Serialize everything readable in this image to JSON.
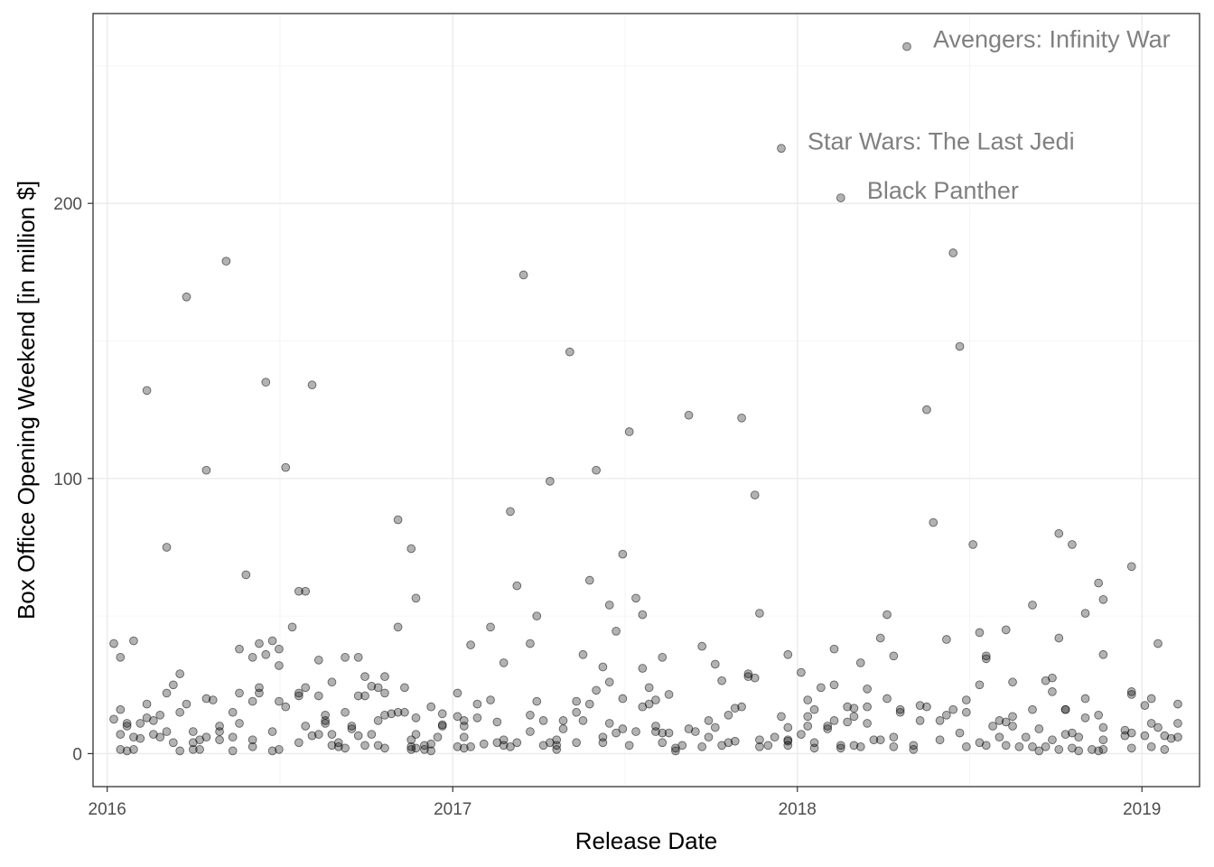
{
  "chart_data": {
    "type": "scatter",
    "title": "",
    "xlabel": "Release Date",
    "ylabel": "Box Office Opening Weekend [in million $]",
    "xlim": [
      "2015-12-17",
      "2019-03-03"
    ],
    "ylim": [
      -12,
      269
    ],
    "x_ticks": [
      "2016-01-01",
      "2017-01-01",
      "2018-01-01",
      "2019-01-01"
    ],
    "x_tick_labels": [
      "2016",
      "2017",
      "2018",
      "2019"
    ],
    "y_ticks": [
      0,
      100,
      200
    ],
    "y_tick_labels": [
      "0",
      "100",
      "200"
    ],
    "grid": true,
    "legend": "none",
    "point_color": "#000000",
    "point_alpha": 0.3,
    "annotations": [
      {
        "text": "Avengers: Infinity War",
        "x": "2018-04-27",
        "y": 257
      },
      {
        "text": "Star Wars: The Last Jedi",
        "x": "2017-12-15",
        "y": 220
      },
      {
        "text": "Black Panther",
        "x": "2018-02-16",
        "y": 202
      }
    ],
    "points": [
      [
        "2016-01-08",
        40
      ],
      [
        "2016-01-08",
        12.5
      ],
      [
        "2016-01-15",
        35
      ],
      [
        "2016-01-15",
        16
      ],
      [
        "2016-01-15",
        7
      ],
      [
        "2016-01-15",
        1.5
      ],
      [
        "2016-01-22",
        11
      ],
      [
        "2016-01-22",
        10
      ],
      [
        "2016-01-22",
        1
      ],
      [
        "2016-01-29",
        41
      ],
      [
        "2016-01-29",
        1.5
      ],
      [
        "2016-01-29",
        6
      ],
      [
        "2016-02-05",
        11
      ],
      [
        "2016-02-05",
        5.5
      ],
      [
        "2016-02-12",
        132
      ],
      [
        "2016-02-12",
        18
      ],
      [
        "2016-02-12",
        13
      ],
      [
        "2016-02-19",
        12
      ],
      [
        "2016-02-19",
        7
      ],
      [
        "2016-02-26",
        14
      ],
      [
        "2016-02-26",
        6
      ],
      [
        "2016-03-04",
        75
      ],
      [
        "2016-03-04",
        22
      ],
      [
        "2016-03-04",
        8
      ],
      [
        "2016-03-11",
        25
      ],
      [
        "2016-03-11",
        4
      ],
      [
        "2016-03-18",
        29
      ],
      [
        "2016-03-18",
        15
      ],
      [
        "2016-03-18",
        1
      ],
      [
        "2016-03-25",
        166
      ],
      [
        "2016-03-25",
        18
      ],
      [
        "2016-04-01",
        8
      ],
      [
        "2016-04-01",
        4
      ],
      [
        "2016-04-01",
        1.5
      ],
      [
        "2016-04-08",
        5
      ],
      [
        "2016-04-08",
        1.5
      ],
      [
        "2016-04-15",
        103
      ],
      [
        "2016-04-15",
        20
      ],
      [
        "2016-04-15",
        6
      ],
      [
        "2016-04-22",
        19.5
      ],
      [
        "2016-04-29",
        10
      ],
      [
        "2016-04-29",
        8
      ],
      [
        "2016-04-29",
        5
      ],
      [
        "2016-05-06",
        179
      ],
      [
        "2016-05-13",
        15
      ],
      [
        "2016-05-13",
        1
      ],
      [
        "2016-05-13",
        6
      ],
      [
        "2016-05-20",
        38
      ],
      [
        "2016-05-20",
        22
      ],
      [
        "2016-05-20",
        11
      ],
      [
        "2016-05-27",
        65
      ],
      [
        "2016-06-03",
        35
      ],
      [
        "2016-06-03",
        19
      ],
      [
        "2016-06-03",
        5
      ],
      [
        "2016-06-03",
        2.5
      ],
      [
        "2016-06-10",
        40
      ],
      [
        "2016-06-10",
        24
      ],
      [
        "2016-06-10",
        22
      ],
      [
        "2016-06-17",
        135
      ],
      [
        "2016-06-17",
        36
      ],
      [
        "2016-06-24",
        41
      ],
      [
        "2016-06-24",
        8
      ],
      [
        "2016-06-24",
        1
      ],
      [
        "2016-07-01",
        38
      ],
      [
        "2016-07-01",
        32
      ],
      [
        "2016-07-01",
        19
      ],
      [
        "2016-07-01",
        1.5
      ],
      [
        "2016-07-08",
        104
      ],
      [
        "2016-07-08",
        17
      ],
      [
        "2016-07-15",
        46
      ],
      [
        "2016-07-22",
        59
      ],
      [
        "2016-07-22",
        21
      ],
      [
        "2016-07-22",
        22
      ],
      [
        "2016-07-22",
        4
      ],
      [
        "2016-07-29",
        59
      ],
      [
        "2016-07-29",
        24
      ],
      [
        "2016-07-29",
        10
      ],
      [
        "2016-08-05",
        134
      ],
      [
        "2016-08-05",
        6.5
      ],
      [
        "2016-08-12",
        34
      ],
      [
        "2016-08-12",
        21
      ],
      [
        "2016-08-12",
        7
      ],
      [
        "2016-08-19",
        14
      ],
      [
        "2016-08-19",
        12
      ],
      [
        "2016-08-19",
        11
      ],
      [
        "2016-08-26",
        26
      ],
      [
        "2016-08-26",
        7
      ],
      [
        "2016-08-26",
        3
      ],
      [
        "2016-09-02",
        4
      ],
      [
        "2016-09-02",
        2.5
      ],
      [
        "2016-09-09",
        35
      ],
      [
        "2016-09-09",
        15
      ],
      [
        "2016-09-09",
        2
      ],
      [
        "2016-09-16",
        10
      ],
      [
        "2016-09-16",
        9
      ],
      [
        "2016-09-23",
        35
      ],
      [
        "2016-09-23",
        21
      ],
      [
        "2016-09-23",
        6.5
      ],
      [
        "2016-09-30",
        28
      ],
      [
        "2016-09-30",
        21
      ],
      [
        "2016-09-30",
        3
      ],
      [
        "2016-10-07",
        24.5
      ],
      [
        "2016-10-07",
        7
      ],
      [
        "2016-10-14",
        24
      ],
      [
        "2016-10-14",
        12
      ],
      [
        "2016-10-14",
        3
      ],
      [
        "2016-10-21",
        28
      ],
      [
        "2016-10-21",
        22
      ],
      [
        "2016-10-21",
        14
      ],
      [
        "2016-10-21",
        2
      ],
      [
        "2016-10-28",
        14.5
      ],
      [
        "2016-11-04",
        85
      ],
      [
        "2016-11-04",
        46
      ],
      [
        "2016-11-04",
        15
      ],
      [
        "2016-11-11",
        24
      ],
      [
        "2016-11-11",
        15
      ],
      [
        "2016-11-18",
        74.5
      ],
      [
        "2016-11-18",
        5
      ],
      [
        "2016-11-18",
        2.5
      ],
      [
        "2016-11-18",
        1.5
      ],
      [
        "2016-11-23",
        56.5
      ],
      [
        "2016-11-23",
        13
      ],
      [
        "2016-11-23",
        7
      ],
      [
        "2016-11-23",
        2
      ],
      [
        "2016-12-02",
        3
      ],
      [
        "2016-12-02",
        1.5
      ],
      [
        "2016-12-09",
        17
      ],
      [
        "2016-12-09",
        3.5
      ],
      [
        "2016-12-09",
        1
      ],
      [
        "2016-12-16",
        6
      ],
      [
        "2016-12-21",
        10
      ],
      [
        "2016-12-21",
        10.5
      ],
      [
        "2016-12-21",
        14.5
      ],
      [
        "2017-01-06",
        22
      ],
      [
        "2017-01-06",
        13.5
      ],
      [
        "2017-01-06",
        2.5
      ],
      [
        "2017-01-13",
        12
      ],
      [
        "2017-01-13",
        10
      ],
      [
        "2017-01-13",
        6
      ],
      [
        "2017-01-13",
        2
      ],
      [
        "2017-01-20",
        39.5
      ],
      [
        "2017-01-20",
        2.5
      ],
      [
        "2017-01-27",
        18
      ],
      [
        "2017-01-27",
        13
      ],
      [
        "2017-02-03",
        3.5
      ],
      [
        "2017-02-10",
        46
      ],
      [
        "2017-02-10",
        19.5
      ],
      [
        "2017-02-17",
        11.5
      ],
      [
        "2017-02-17",
        4
      ],
      [
        "2017-02-24",
        33
      ],
      [
        "2017-02-24",
        5
      ],
      [
        "2017-02-24",
        3
      ],
      [
        "2017-03-03",
        88
      ],
      [
        "2017-03-03",
        2.5
      ],
      [
        "2017-03-10",
        61
      ],
      [
        "2017-03-10",
        4
      ],
      [
        "2017-03-17",
        174
      ],
      [
        "2017-03-24",
        40
      ],
      [
        "2017-03-24",
        14
      ],
      [
        "2017-03-24",
        8
      ],
      [
        "2017-03-31",
        50
      ],
      [
        "2017-03-31",
        19
      ],
      [
        "2017-04-07",
        12
      ],
      [
        "2017-04-07",
        3
      ],
      [
        "2017-04-14",
        99
      ],
      [
        "2017-04-14",
        4
      ],
      [
        "2017-04-21",
        5
      ],
      [
        "2017-04-21",
        3
      ],
      [
        "2017-04-21",
        1.5
      ],
      [
        "2017-04-28",
        12
      ],
      [
        "2017-04-28",
        9
      ],
      [
        "2017-05-05",
        146
      ],
      [
        "2017-05-12",
        19
      ],
      [
        "2017-05-12",
        15
      ],
      [
        "2017-05-12",
        4
      ],
      [
        "2017-05-19",
        36
      ],
      [
        "2017-05-19",
        12
      ],
      [
        "2017-05-26",
        63
      ],
      [
        "2017-05-26",
        18
      ],
      [
        "2017-06-02",
        103
      ],
      [
        "2017-06-02",
        23
      ],
      [
        "2017-06-09",
        31.5
      ],
      [
        "2017-06-09",
        6
      ],
      [
        "2017-06-09",
        4
      ],
      [
        "2017-06-16",
        54
      ],
      [
        "2017-06-16",
        26
      ],
      [
        "2017-06-16",
        11
      ],
      [
        "2017-06-23",
        44.5
      ],
      [
        "2017-06-23",
        7.5
      ],
      [
        "2017-06-30",
        72.5
      ],
      [
        "2017-06-30",
        20
      ],
      [
        "2017-06-30",
        9
      ],
      [
        "2017-07-07",
        117
      ],
      [
        "2017-07-07",
        3
      ],
      [
        "2017-07-14",
        56.5
      ],
      [
        "2017-07-14",
        8
      ],
      [
        "2017-07-21",
        50.5
      ],
      [
        "2017-07-21",
        31
      ],
      [
        "2017-07-21",
        17
      ],
      [
        "2017-07-28",
        24
      ],
      [
        "2017-07-28",
        18
      ],
      [
        "2017-08-04",
        19.5
      ],
      [
        "2017-08-04",
        10
      ],
      [
        "2017-08-04",
        8
      ],
      [
        "2017-08-11",
        35
      ],
      [
        "2017-08-11",
        7.5
      ],
      [
        "2017-08-11",
        4
      ],
      [
        "2017-08-18",
        21.5
      ],
      [
        "2017-08-18",
        7.5
      ],
      [
        "2017-08-25",
        2
      ],
      [
        "2017-08-25",
        1
      ],
      [
        "2017-09-01",
        3
      ],
      [
        "2017-09-08",
        123
      ],
      [
        "2017-09-08",
        9
      ],
      [
        "2017-09-15",
        8
      ],
      [
        "2017-09-22",
        39
      ],
      [
        "2017-09-22",
        2.5
      ],
      [
        "2017-09-29",
        12
      ],
      [
        "2017-09-29",
        6
      ],
      [
        "2017-10-06",
        32.5
      ],
      [
        "2017-10-06",
        9.5
      ],
      [
        "2017-10-13",
        26.5
      ],
      [
        "2017-10-13",
        3
      ],
      [
        "2017-10-20",
        14
      ],
      [
        "2017-10-20",
        4
      ],
      [
        "2017-10-27",
        16.5
      ],
      [
        "2017-10-27",
        4.5
      ],
      [
        "2017-11-03",
        122
      ],
      [
        "2017-11-03",
        17
      ],
      [
        "2017-11-10",
        29
      ],
      [
        "2017-11-10",
        28
      ],
      [
        "2017-11-17",
        94
      ],
      [
        "2017-11-17",
        27.5
      ],
      [
        "2017-11-22",
        51
      ],
      [
        "2017-11-22",
        5
      ],
      [
        "2017-11-22",
        2.5
      ],
      [
        "2017-12-01",
        3
      ],
      [
        "2017-12-08",
        6
      ],
      [
        "2017-12-15",
        220
      ],
      [
        "2017-12-15",
        13.5
      ],
      [
        "2017-12-22",
        36
      ],
      [
        "2017-12-22",
        9.5
      ],
      [
        "2017-12-22",
        5
      ],
      [
        "2017-12-22",
        3
      ],
      [
        "2017-12-22",
        4.5
      ],
      [
        "2018-01-05",
        29.5
      ],
      [
        "2018-01-05",
        7
      ],
      [
        "2018-01-12",
        19.5
      ],
      [
        "2018-01-12",
        13.5
      ],
      [
        "2018-01-12",
        10
      ],
      [
        "2018-01-19",
        16
      ],
      [
        "2018-01-19",
        4
      ],
      [
        "2018-01-19",
        2
      ],
      [
        "2018-01-26",
        24
      ],
      [
        "2018-02-02",
        10
      ],
      [
        "2018-02-02",
        9
      ],
      [
        "2018-02-09",
        38
      ],
      [
        "2018-02-09",
        25
      ],
      [
        "2018-02-09",
        12
      ],
      [
        "2018-02-16",
        202
      ],
      [
        "2018-02-16",
        3
      ],
      [
        "2018-02-16",
        2
      ],
      [
        "2018-02-23",
        17
      ],
      [
        "2018-02-23",
        11.5
      ],
      [
        "2018-03-02",
        16.5
      ],
      [
        "2018-03-02",
        13.5
      ],
      [
        "2018-03-02",
        3
      ],
      [
        "2018-03-09",
        33
      ],
      [
        "2018-03-09",
        2.5
      ],
      [
        "2018-03-16",
        23.5
      ],
      [
        "2018-03-16",
        17
      ],
      [
        "2018-03-16",
        11
      ],
      [
        "2018-03-23",
        5
      ],
      [
        "2018-03-30",
        42
      ],
      [
        "2018-03-30",
        5
      ],
      [
        "2018-04-06",
        50.5
      ],
      [
        "2018-04-06",
        20
      ],
      [
        "2018-04-13",
        6
      ],
      [
        "2018-04-13",
        2.5
      ],
      [
        "2018-04-13",
        35.5
      ],
      [
        "2018-04-20",
        16
      ],
      [
        "2018-04-20",
        15
      ],
      [
        "2018-04-27",
        257
      ],
      [
        "2018-05-04",
        3
      ],
      [
        "2018-05-04",
        1.5
      ],
      [
        "2018-05-11",
        17.5
      ],
      [
        "2018-05-11",
        12
      ],
      [
        "2018-05-18",
        125
      ],
      [
        "2018-05-18",
        17
      ],
      [
        "2018-05-25",
        84
      ],
      [
        "2018-06-01",
        12
      ],
      [
        "2018-06-01",
        5
      ],
      [
        "2018-06-08",
        41.5
      ],
      [
        "2018-06-08",
        14
      ],
      [
        "2018-06-15",
        182
      ],
      [
        "2018-06-15",
        16
      ],
      [
        "2018-06-22",
        148
      ],
      [
        "2018-06-22",
        7.5
      ],
      [
        "2018-06-29",
        19.5
      ],
      [
        "2018-06-29",
        15
      ],
      [
        "2018-06-29",
        2.5
      ],
      [
        "2018-07-06",
        76
      ],
      [
        "2018-07-13",
        44
      ],
      [
        "2018-07-13",
        25
      ],
      [
        "2018-07-13",
        4
      ],
      [
        "2018-07-20",
        35.5
      ],
      [
        "2018-07-20",
        34.5
      ],
      [
        "2018-07-20",
        3
      ],
      [
        "2018-07-27",
        10
      ],
      [
        "2018-08-03",
        12
      ],
      [
        "2018-08-03",
        6
      ],
      [
        "2018-08-10",
        45
      ],
      [
        "2018-08-10",
        11.5
      ],
      [
        "2018-08-10",
        3
      ],
      [
        "2018-08-17",
        26
      ],
      [
        "2018-08-17",
        10
      ],
      [
        "2018-08-17",
        13.5
      ],
      [
        "2018-08-24",
        2.5
      ],
      [
        "2018-08-31",
        6
      ],
      [
        "2018-09-07",
        54
      ],
      [
        "2018-09-07",
        16
      ],
      [
        "2018-09-07",
        2.5
      ],
      [
        "2018-09-14",
        9
      ],
      [
        "2018-09-14",
        1
      ],
      [
        "2018-09-21",
        26.5
      ],
      [
        "2018-09-21",
        2.5
      ],
      [
        "2018-09-28",
        27.5
      ],
      [
        "2018-09-28",
        22.5
      ],
      [
        "2018-09-28",
        5
      ],
      [
        "2018-10-05",
        80
      ],
      [
        "2018-10-05",
        42
      ],
      [
        "2018-10-05",
        1.5
      ],
      [
        "2018-10-12",
        16
      ],
      [
        "2018-10-12",
        16
      ],
      [
        "2018-10-12",
        7
      ],
      [
        "2018-10-19",
        76
      ],
      [
        "2018-10-19",
        7.5
      ],
      [
        "2018-10-19",
        2
      ],
      [
        "2018-10-26",
        6
      ],
      [
        "2018-10-26",
        1
      ],
      [
        "2018-11-02",
        51
      ],
      [
        "2018-11-02",
        20
      ],
      [
        "2018-11-02",
        13
      ],
      [
        "2018-11-09",
        1.5
      ],
      [
        "2018-11-16",
        62
      ],
      [
        "2018-11-16",
        14
      ],
      [
        "2018-11-16",
        1
      ],
      [
        "2018-11-21",
        56
      ],
      [
        "2018-11-21",
        36
      ],
      [
        "2018-11-21",
        9.5
      ],
      [
        "2018-11-21",
        5
      ],
      [
        "2018-11-21",
        1.5
      ],
      [
        "2018-12-14",
        8.5
      ],
      [
        "2018-12-14",
        6.5
      ],
      [
        "2018-12-21",
        68
      ],
      [
        "2018-12-21",
        22.5
      ],
      [
        "2018-12-21",
        21.5
      ],
      [
        "2018-12-21",
        7.5
      ],
      [
        "2018-12-21",
        2
      ],
      [
        "2019-01-04",
        17.5
      ],
      [
        "2019-01-04",
        6.5
      ],
      [
        "2019-01-11",
        20
      ],
      [
        "2019-01-11",
        11
      ],
      [
        "2019-01-11",
        2.5
      ],
      [
        "2019-01-18",
        40
      ],
      [
        "2019-01-18",
        9.5
      ],
      [
        "2019-01-25",
        6.5
      ],
      [
        "2019-01-25",
        1.5
      ],
      [
        "2019-02-01",
        5.5
      ],
      [
        "2019-02-08",
        18
      ],
      [
        "2019-02-08",
        11
      ],
      [
        "2019-02-08",
        6
      ]
    ]
  }
}
